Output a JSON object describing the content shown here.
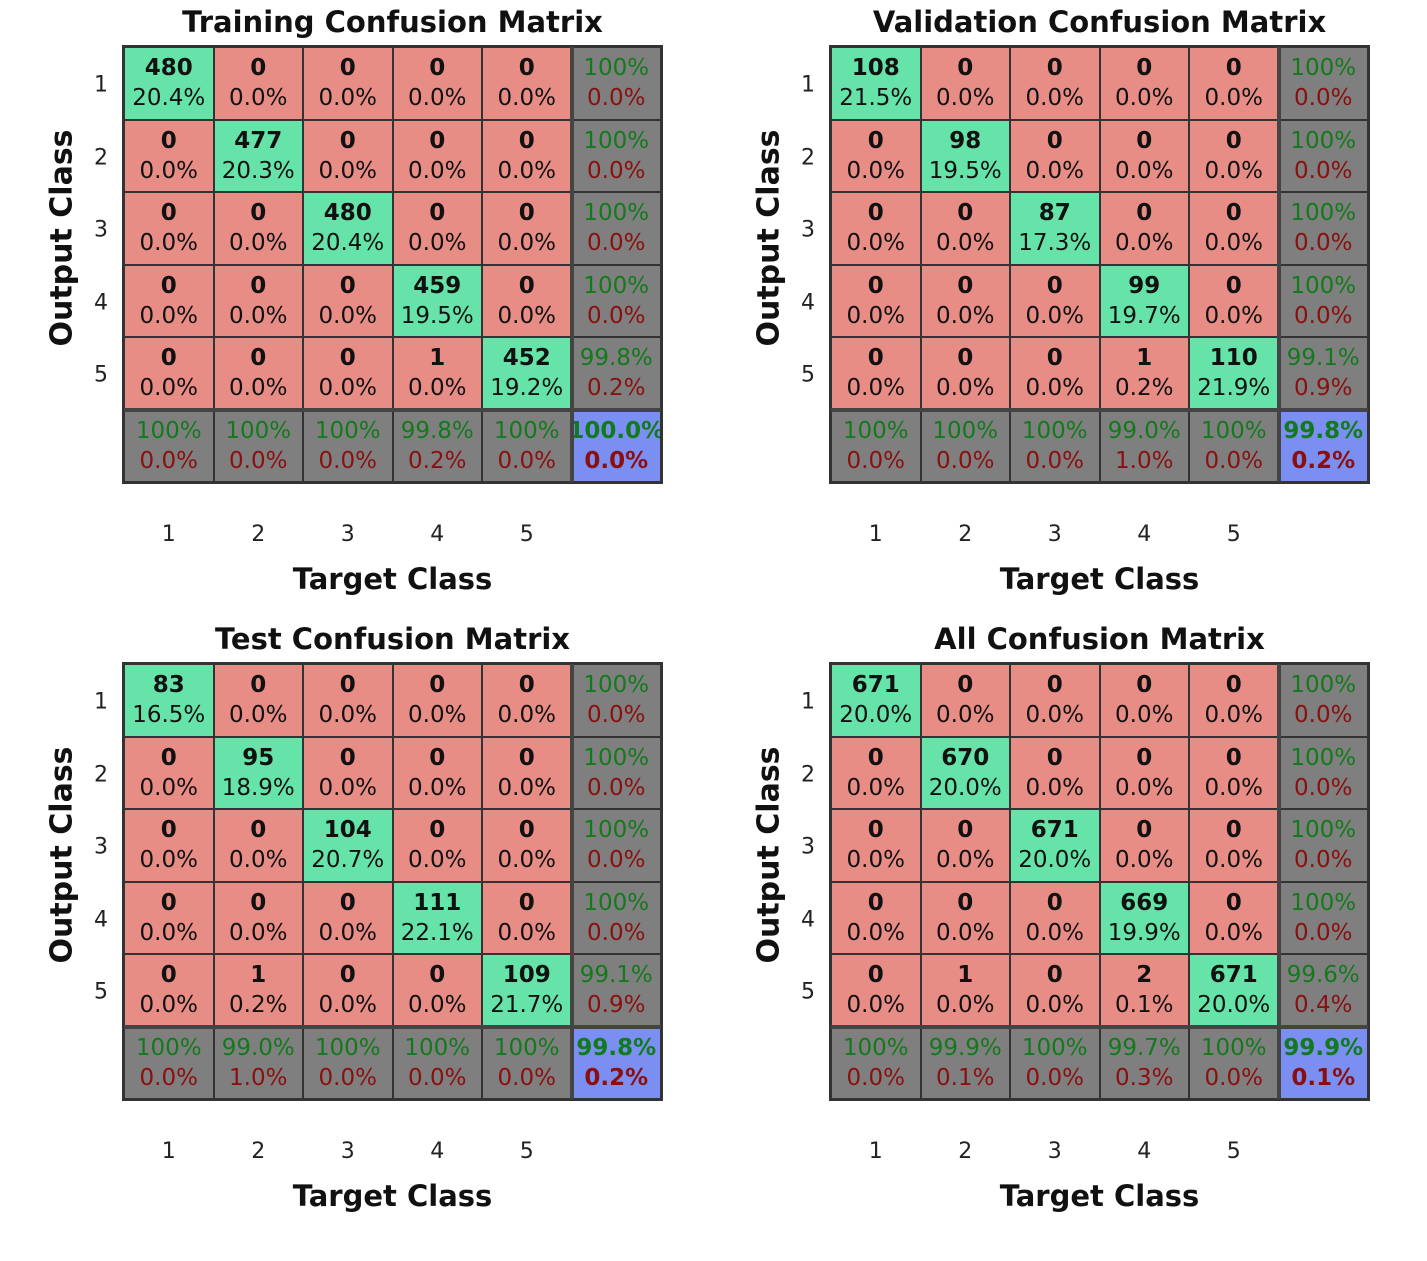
{
  "labels": {
    "y_axis": "Output Class",
    "x_axis": "Target Class"
  },
  "classes": [
    "1",
    "2",
    "3",
    "4",
    "5"
  ],
  "chart_data": [
    {
      "type": "heatmap",
      "title": "Training Confusion Matrix",
      "xlabel": "Target Class",
      "ylabel": "Output Class",
      "counts": [
        [
          480,
          0,
          0,
          0,
          0
        ],
        [
          0,
          477,
          0,
          0,
          0
        ],
        [
          0,
          0,
          480,
          0,
          0
        ],
        [
          0,
          0,
          0,
          459,
          0
        ],
        [
          0,
          0,
          0,
          1,
          452
        ]
      ],
      "percents": [
        [
          "20.4%",
          "0.0%",
          "0.0%",
          "0.0%",
          "0.0%"
        ],
        [
          "0.0%",
          "20.3%",
          "0.0%",
          "0.0%",
          "0.0%"
        ],
        [
          "0.0%",
          "0.0%",
          "20.4%",
          "0.0%",
          "0.0%"
        ],
        [
          "0.0%",
          "0.0%",
          "0.0%",
          "19.5%",
          "0.0%"
        ],
        [
          "0.0%",
          "0.0%",
          "0.0%",
          "0.0%",
          "19.2%"
        ]
      ],
      "row_summary": [
        [
          "100%",
          "0.0%"
        ],
        [
          "100%",
          "0.0%"
        ],
        [
          "100%",
          "0.0%"
        ],
        [
          "100%",
          "0.0%"
        ],
        [
          "99.8%",
          "0.2%"
        ]
      ],
      "col_summary": [
        [
          "100%",
          "0.0%"
        ],
        [
          "100%",
          "0.0%"
        ],
        [
          "100%",
          "0.0%"
        ],
        [
          "99.8%",
          "0.2%"
        ],
        [
          "100%",
          "0.0%"
        ]
      ],
      "total": [
        "100.0%",
        "0.0%"
      ]
    },
    {
      "type": "heatmap",
      "title": "Validation Confusion Matrix",
      "xlabel": "Target Class",
      "ylabel": "Output Class",
      "counts": [
        [
          108,
          0,
          0,
          0,
          0
        ],
        [
          0,
          98,
          0,
          0,
          0
        ],
        [
          0,
          0,
          87,
          0,
          0
        ],
        [
          0,
          0,
          0,
          99,
          0
        ],
        [
          0,
          0,
          0,
          1,
          110
        ]
      ],
      "percents": [
        [
          "21.5%",
          "0.0%",
          "0.0%",
          "0.0%",
          "0.0%"
        ],
        [
          "0.0%",
          "19.5%",
          "0.0%",
          "0.0%",
          "0.0%"
        ],
        [
          "0.0%",
          "0.0%",
          "17.3%",
          "0.0%",
          "0.0%"
        ],
        [
          "0.0%",
          "0.0%",
          "0.0%",
          "19.7%",
          "0.0%"
        ],
        [
          "0.0%",
          "0.0%",
          "0.0%",
          "0.2%",
          "21.9%"
        ]
      ],
      "row_summary": [
        [
          "100%",
          "0.0%"
        ],
        [
          "100%",
          "0.0%"
        ],
        [
          "100%",
          "0.0%"
        ],
        [
          "100%",
          "0.0%"
        ],
        [
          "99.1%",
          "0.9%"
        ]
      ],
      "col_summary": [
        [
          "100%",
          "0.0%"
        ],
        [
          "100%",
          "0.0%"
        ],
        [
          "100%",
          "0.0%"
        ],
        [
          "99.0%",
          "1.0%"
        ],
        [
          "100%",
          "0.0%"
        ]
      ],
      "total": [
        "99.8%",
        "0.2%"
      ]
    },
    {
      "type": "heatmap",
      "title": "Test Confusion Matrix",
      "xlabel": "Target Class",
      "ylabel": "Output Class",
      "counts": [
        [
          83,
          0,
          0,
          0,
          0
        ],
        [
          0,
          95,
          0,
          0,
          0
        ],
        [
          0,
          0,
          104,
          0,
          0
        ],
        [
          0,
          0,
          0,
          111,
          0
        ],
        [
          0,
          1,
          0,
          0,
          109
        ]
      ],
      "percents": [
        [
          "16.5%",
          "0.0%",
          "0.0%",
          "0.0%",
          "0.0%"
        ],
        [
          "0.0%",
          "18.9%",
          "0.0%",
          "0.0%",
          "0.0%"
        ],
        [
          "0.0%",
          "0.0%",
          "20.7%",
          "0.0%",
          "0.0%"
        ],
        [
          "0.0%",
          "0.0%",
          "0.0%",
          "22.1%",
          "0.0%"
        ],
        [
          "0.0%",
          "0.2%",
          "0.0%",
          "0.0%",
          "21.7%"
        ]
      ],
      "row_summary": [
        [
          "100%",
          "0.0%"
        ],
        [
          "100%",
          "0.0%"
        ],
        [
          "100%",
          "0.0%"
        ],
        [
          "100%",
          "0.0%"
        ],
        [
          "99.1%",
          "0.9%"
        ]
      ],
      "col_summary": [
        [
          "100%",
          "0.0%"
        ],
        [
          "99.0%",
          "1.0%"
        ],
        [
          "100%",
          "0.0%"
        ],
        [
          "100%",
          "0.0%"
        ],
        [
          "100%",
          "0.0%"
        ]
      ],
      "total": [
        "99.8%",
        "0.2%"
      ]
    },
    {
      "type": "heatmap",
      "title": "All Confusion Matrix",
      "xlabel": "Target Class",
      "ylabel": "Output Class",
      "counts": [
        [
          671,
          0,
          0,
          0,
          0
        ],
        [
          0,
          670,
          0,
          0,
          0
        ],
        [
          0,
          0,
          671,
          0,
          0
        ],
        [
          0,
          0,
          0,
          669,
          0
        ],
        [
          0,
          1,
          0,
          2,
          671
        ]
      ],
      "percents": [
        [
          "20.0%",
          "0.0%",
          "0.0%",
          "0.0%",
          "0.0%"
        ],
        [
          "0.0%",
          "20.0%",
          "0.0%",
          "0.0%",
          "0.0%"
        ],
        [
          "0.0%",
          "0.0%",
          "20.0%",
          "0.0%",
          "0.0%"
        ],
        [
          "0.0%",
          "0.0%",
          "0.0%",
          "19.9%",
          "0.0%"
        ],
        [
          "0.0%",
          "0.0%",
          "0.0%",
          "0.1%",
          "20.0%"
        ]
      ],
      "row_summary": [
        [
          "100%",
          "0.0%"
        ],
        [
          "100%",
          "0.0%"
        ],
        [
          "100%",
          "0.0%"
        ],
        [
          "100%",
          "0.0%"
        ],
        [
          "99.6%",
          "0.4%"
        ]
      ],
      "col_summary": [
        [
          "100%",
          "0.0%"
        ],
        [
          "99.9%",
          "0.1%"
        ],
        [
          "100%",
          "0.0%"
        ],
        [
          "99.7%",
          "0.3%"
        ],
        [
          "100%",
          "0.0%"
        ]
      ],
      "total": [
        "99.9%",
        "0.1%"
      ]
    }
  ]
}
